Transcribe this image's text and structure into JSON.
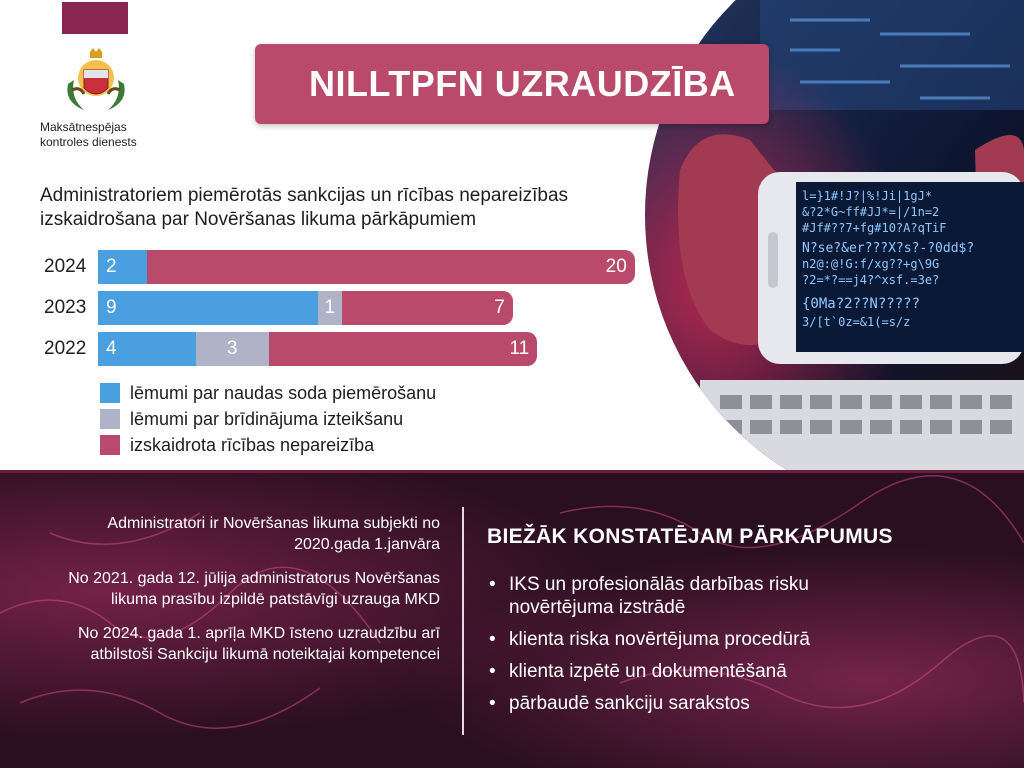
{
  "header": {
    "org_name": "Maksātnespējas kontroles dienests",
    "title": "NILLTPFN UZRAUDZĪBA"
  },
  "colors": {
    "brand": "#8a2452",
    "banner": "#b94a6c",
    "fine": "#4a9fe0",
    "warning": "#b0b2c8",
    "explained": "#b94a6c"
  },
  "chart_data": {
    "type": "bar",
    "orientation": "horizontal",
    "stacked": true,
    "title": "Administratoriem piemērotās sankcijas un rīcības nepareizības izskaidrošana par Novēršanas likuma pārkāpumiem",
    "categories": [
      "2024",
      "2023",
      "2022"
    ],
    "series": [
      {
        "name": "lēmumi par naudas soda piemērošanu",
        "values": [
          2,
          9,
          4
        ]
      },
      {
        "name": "lēmumi par brīdinājuma izteikšanu",
        "values": [
          0,
          1,
          3
        ]
      },
      {
        "name": "izskaidrota rīcības nepareizība",
        "values": [
          20,
          7,
          11
        ]
      }
    ],
    "legend_position": "bottom-left",
    "grid": false
  },
  "facts": [
    "Administratori ir Novēršanas likuma subjekti no 2020.gada 1.janvāra",
    "No 2021. gada 12. jūlija administratorus Novēršanas likuma prasību izpildē patstāvīgi uzrauga MKD",
    "No 2024. gada 1. aprīļa MKD īsteno uzraudzību arī atbilstoši Sankciju likumā noteiktajai kompetencei"
  ],
  "frequent": {
    "title": "BIEŽĀK KONSTATĒJAM PĀRKĀPUMUS",
    "items": [
      "IKS un profesionālās darbības risku novērtējuma izstrādē",
      "klienta riska novērtējuma procedūrā",
      "klienta izpētē un dokumentēšanā",
      "pārbaudē sankciju sarakstos"
    ]
  }
}
